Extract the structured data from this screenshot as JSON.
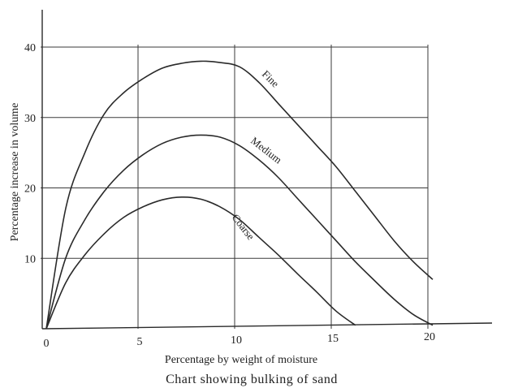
{
  "chart_data": {
    "type": "line",
    "title": "",
    "caption": "Chart showing bulking of sand",
    "xlabel": "Percentage by weight of moisture",
    "ylabel": "Percentage increase in volume",
    "xlim": [
      0,
      20
    ],
    "ylim": [
      0,
      40
    ],
    "x_ticks": [
      "0",
      "5",
      "10",
      "15",
      "20"
    ],
    "y_ticks": [
      "10",
      "20",
      "30",
      "40"
    ],
    "grid": true,
    "legend": "labels on curves",
    "series": [
      {
        "name": "Fine",
        "x": [
          0,
          1,
          2,
          3,
          4,
          5,
          6,
          7,
          8,
          9,
          10,
          11,
          12,
          13,
          14,
          15,
          16,
          17,
          18,
          19,
          20
        ],
        "y": [
          0,
          17,
          25,
          30.5,
          33.5,
          35.5,
          37,
          37.7,
          38,
          37.8,
          37.2,
          35,
          32,
          29,
          26,
          23,
          19.5,
          16,
          12.5,
          9.5,
          7
        ]
      },
      {
        "name": "Medium",
        "x": [
          0,
          1,
          2,
          3,
          4,
          5,
          6,
          7,
          8,
          9,
          10,
          11,
          12,
          13,
          14,
          15,
          16,
          17,
          18,
          19,
          20
        ],
        "y": [
          0,
          10,
          15.5,
          19.5,
          22.5,
          24.7,
          26.3,
          27.2,
          27.5,
          27.2,
          26,
          24,
          21.5,
          18.5,
          15.5,
          12.5,
          9.5,
          6.8,
          4.2,
          2,
          0.5
        ]
      },
      {
        "name": "Coarse",
        "x": [
          0,
          1,
          2,
          3,
          4,
          5,
          6,
          7,
          8,
          9,
          10,
          11,
          12,
          13,
          14,
          15,
          16
        ],
        "y": [
          0,
          6.5,
          10.5,
          13.5,
          15.8,
          17.3,
          18.3,
          18.7,
          18.4,
          17.3,
          15.5,
          13,
          10.5,
          7.8,
          5.2,
          2.5,
          0.5
        ]
      }
    ]
  },
  "colors": {
    "line": "#2a2a2a",
    "grid": "#3a3a3a",
    "background": "#ffffff"
  }
}
